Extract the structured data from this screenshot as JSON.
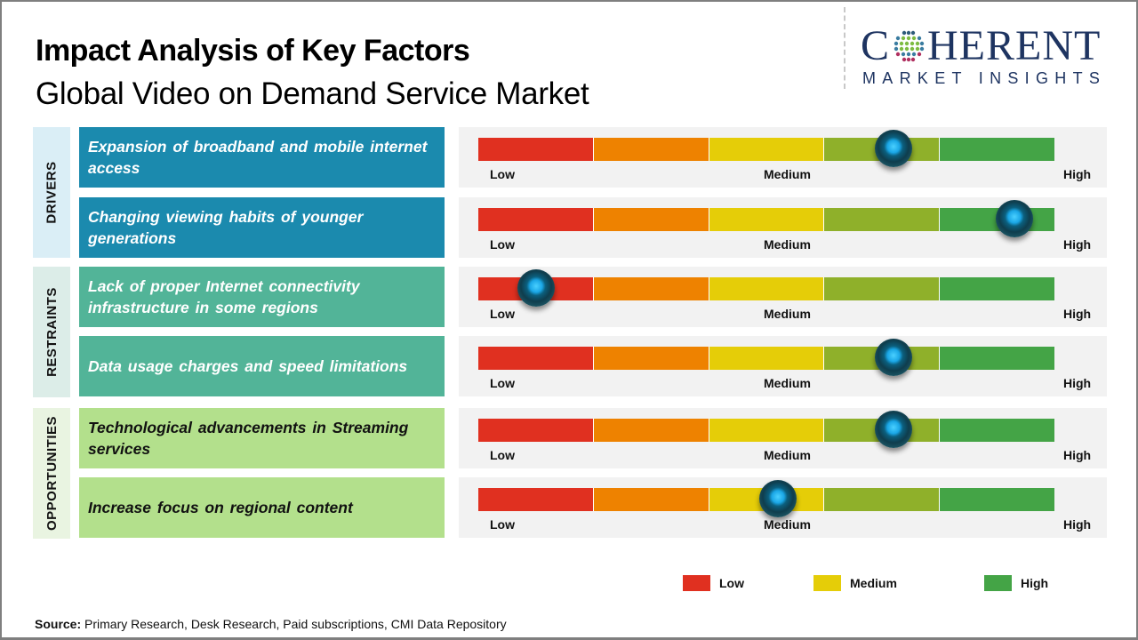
{
  "header": {
    "title": "Impact Analysis of Key Factors",
    "subtitle": "Global Video on Demand Service Market"
  },
  "logo": {
    "main_left": "C",
    "main_right": "HERENT",
    "sub": "MARKET INSIGHTS",
    "icon": "globe-dots-icon"
  },
  "scale_colors": [
    "#e03020",
    "#ee8200",
    "#e5cd08",
    "#8fb02a",
    "#44a446"
  ],
  "scale_labels": {
    "low": "Low",
    "medium": "Medium",
    "high": "High"
  },
  "categories": [
    {
      "name": "DRIVERS",
      "factors": [
        {
          "text": "Expansion of broadband and mobile internet access",
          "impact": 0.72
        },
        {
          "text": "Changing viewing habits of younger generations",
          "impact": 0.93
        }
      ]
    },
    {
      "name": "RESTRAINTS",
      "factors": [
        {
          "text": "Lack of proper Internet connectivity infrastructure in some regions",
          "impact": 0.1
        },
        {
          "text": "Data usage charges and speed limitations",
          "impact": 0.72
        }
      ]
    },
    {
      "name": "OPPORTUNITIES",
      "factors": [
        {
          "text": "Technological advancements in Streaming services",
          "impact": 0.72
        },
        {
          "text": "Increase focus on regional content",
          "impact": 0.52
        }
      ]
    }
  ],
  "legend": [
    {
      "label": "Low",
      "color": "#e03020"
    },
    {
      "label": "Medium",
      "color": "#e5cd08"
    },
    {
      "label": "High",
      "color": "#44a446"
    }
  ],
  "source": {
    "label": "Source:",
    "text": " Primary Research, Desk Research, Paid subscriptions, CMI Data Repository"
  }
}
